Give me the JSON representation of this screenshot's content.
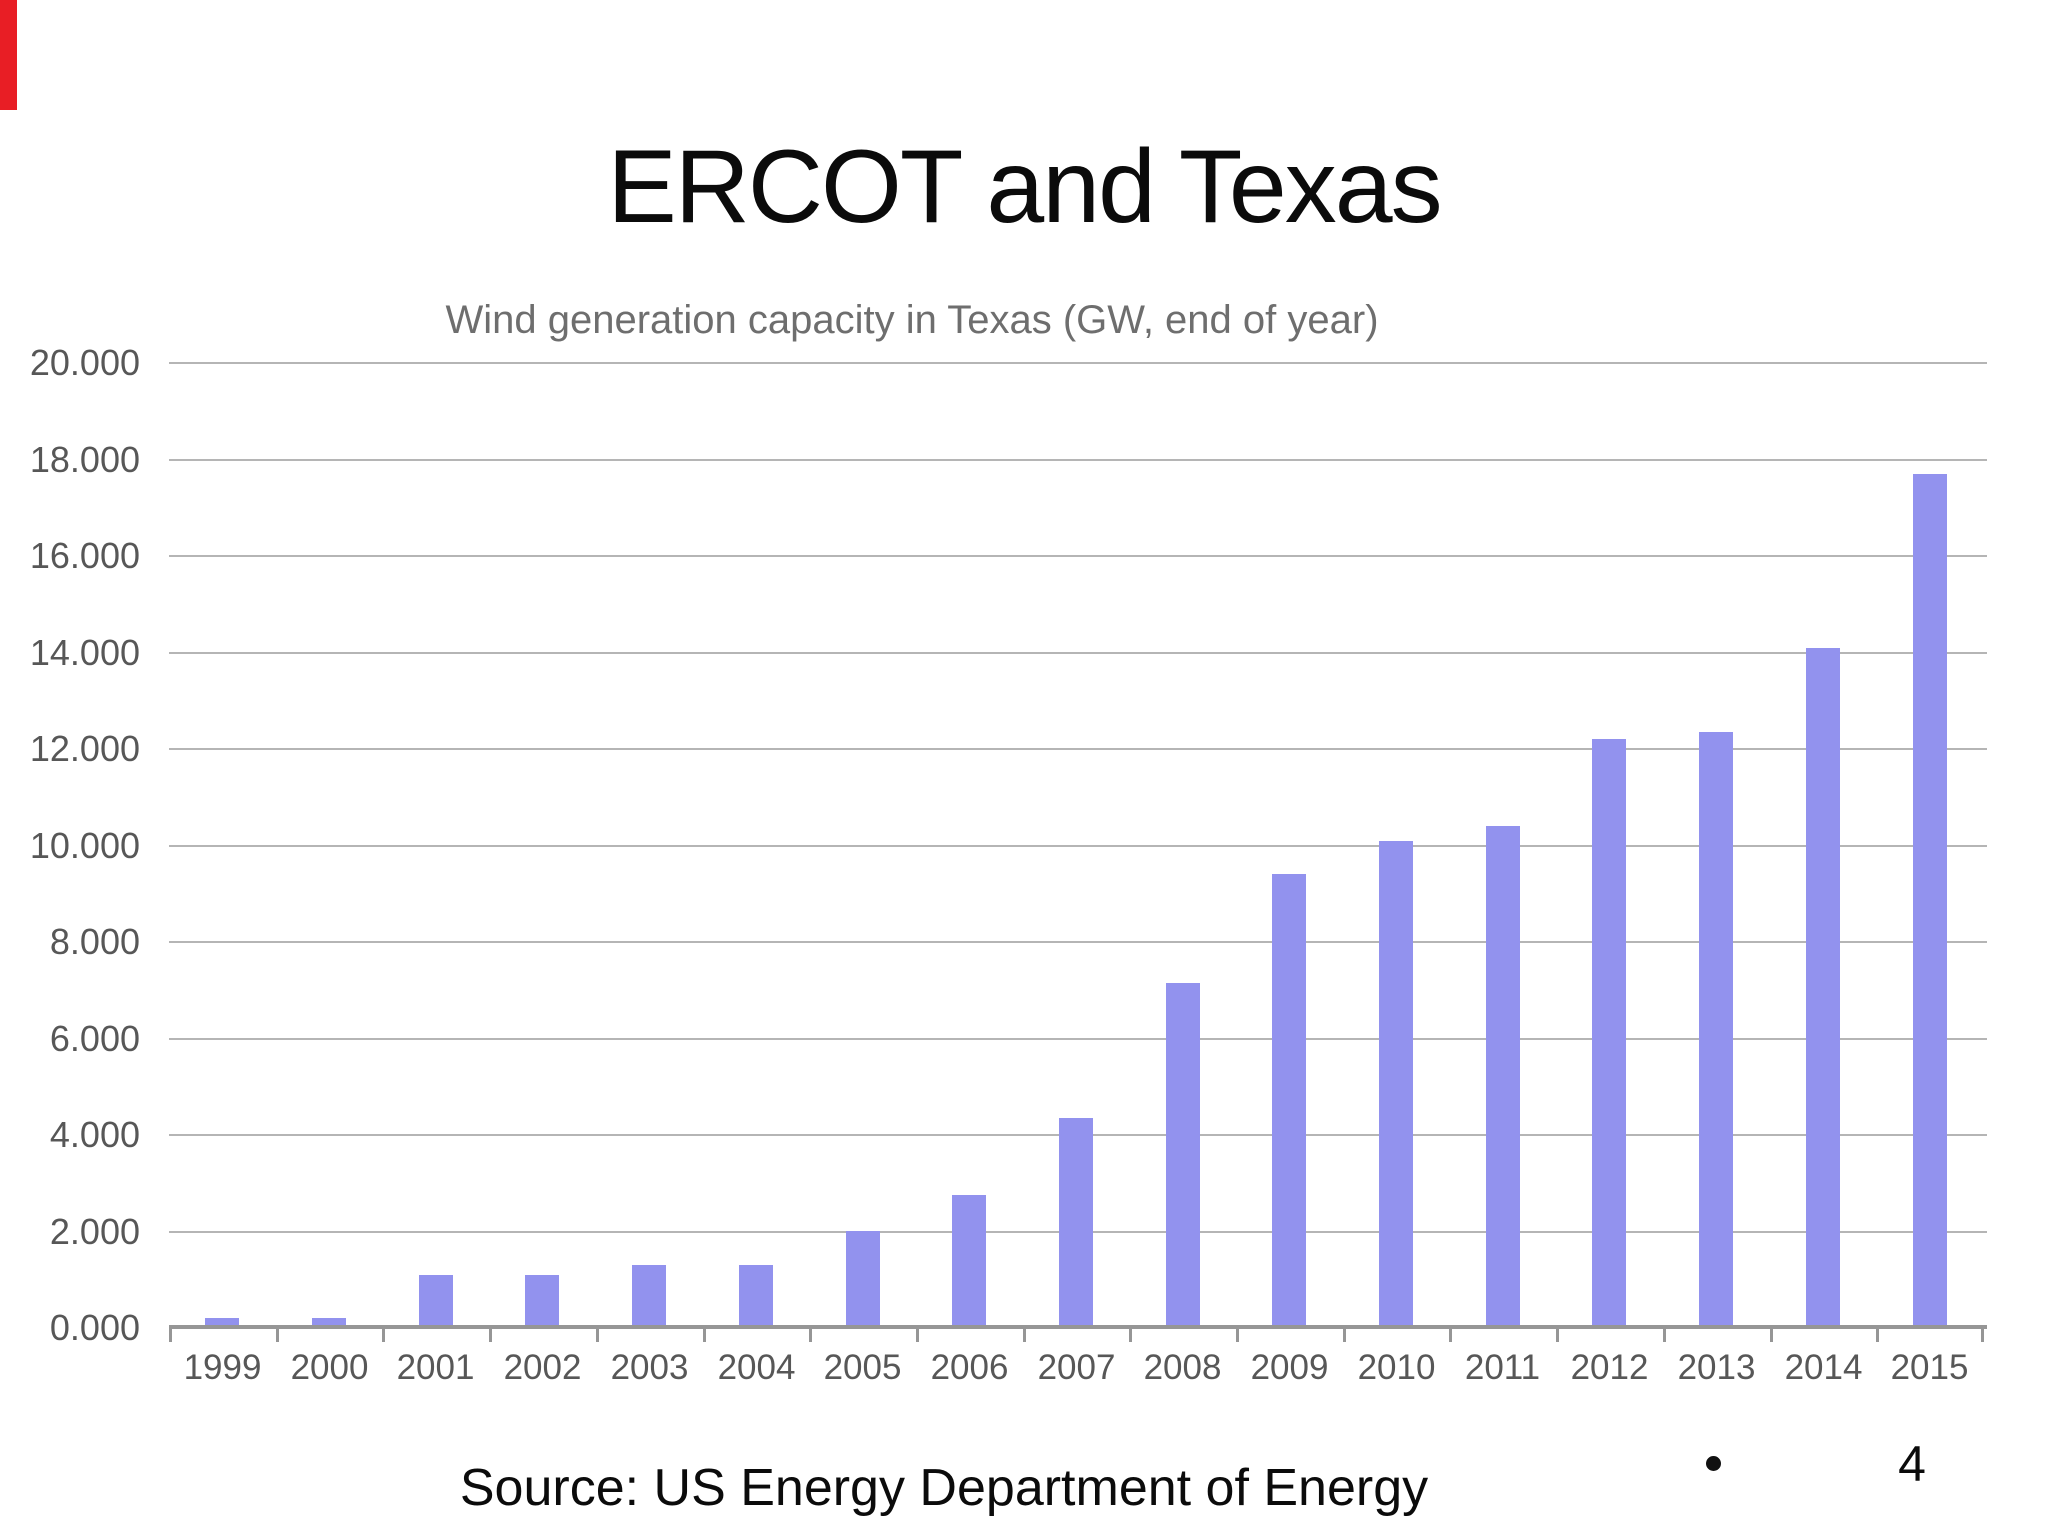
{
  "slide": {
    "title": "ERCOT and Texas",
    "source_text": "Source: US Energy Department of Energy",
    "page_number": "4",
    "bullet_icon": "filled-circle",
    "red_marker_color": "#e81e25"
  },
  "chart_data": {
    "type": "bar",
    "title": "Wind generation capacity in Texas (GW, end of year)",
    "categories": [
      "1999",
      "2000",
      "2001",
      "2002",
      "2003",
      "2004",
      "2005",
      "2006",
      "2007",
      "2008",
      "2009",
      "2010",
      "2011",
      "2012",
      "2013",
      "2014",
      "2015"
    ],
    "values": [
      0.2,
      0.2,
      1.1,
      1.1,
      1.3,
      1.3,
      2.0,
      2.75,
      4.35,
      7.15,
      9.4,
      10.1,
      10.4,
      12.2,
      12.35,
      14.1,
      17.7
    ],
    "ylim": [
      0,
      20
    ],
    "ytick_step": 2,
    "ytick_labels_top_to_bottom": [
      "20.000",
      "18.000",
      "16.000",
      "14.000",
      "12.000",
      "10.000",
      "8.000",
      "6.000",
      "4.000",
      "2.000",
      "0.000"
    ],
    "grid": true,
    "legend": "none",
    "colors": {
      "bar": "#9292ee",
      "gridline": "#b5b5b5",
      "axis_line": "#969696",
      "axis_tick": "#969696",
      "axis_label": "#575757",
      "chart_title": "#6e6e6e"
    }
  }
}
